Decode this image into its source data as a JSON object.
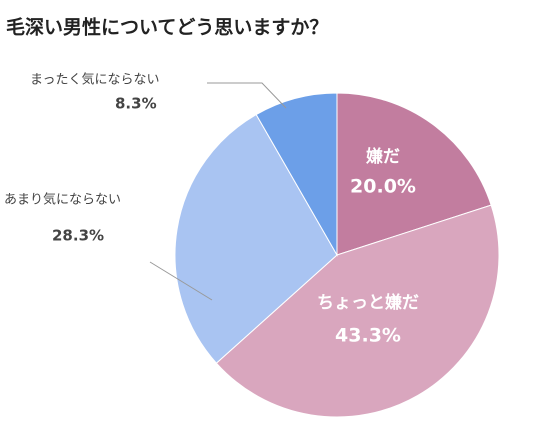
{
  "chart_data": {
    "type": "pie",
    "title": "毛深い男性についてどう思いますか？",
    "categories": [
      "嫌だ",
      "ちょっと嫌だ",
      "あまり気にならない",
      "まったく気にならない"
    ],
    "values": [
      20.0,
      43.3,
      28.3,
      8.3
    ],
    "value_labels": [
      "20.0%",
      "43.3%",
      "28.3%",
      "8.3%"
    ],
    "colors": [
      "#c27d9f",
      "#d9a6be",
      "#a9c4f2",
      "#6c9fe8"
    ]
  }
}
